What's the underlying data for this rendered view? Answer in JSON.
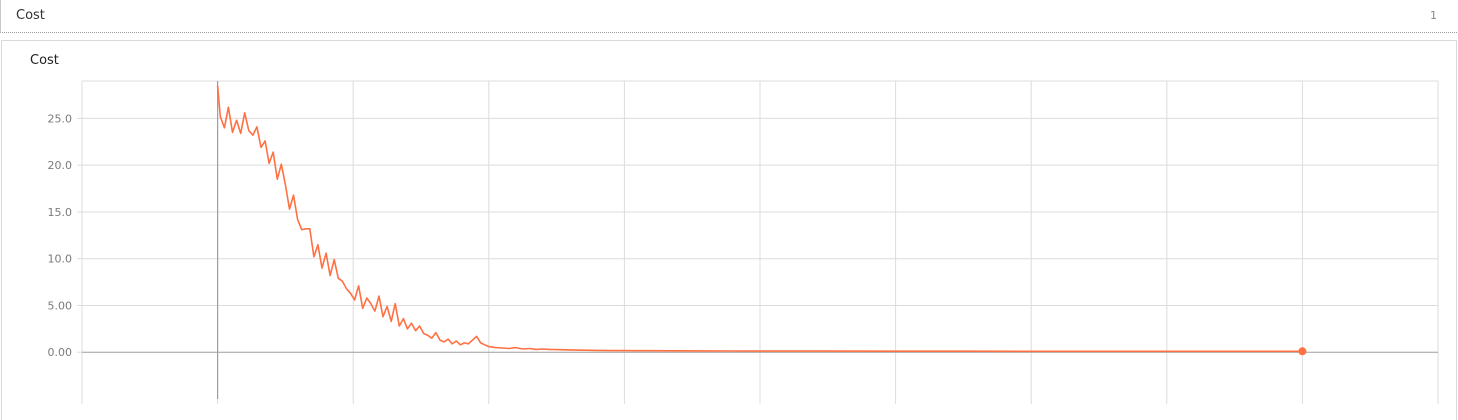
{
  "section": {
    "title": "Cost",
    "count": "1"
  },
  "card": {
    "title": "Cost"
  },
  "colors": {
    "series": "#ff7043",
    "grid": "#dcdcdc",
    "axis": "#9e9e9e"
  },
  "chart_data": {
    "type": "line",
    "title": "Cost",
    "xlabel": "",
    "ylabel": "",
    "ylim": [
      -5,
      29
    ],
    "xlim": [
      -1000,
      9000
    ],
    "x_ticks_shown": false,
    "y_ticks": [
      {
        "value": 25,
        "label": "25.0"
      },
      {
        "value": 20,
        "label": "20.0"
      },
      {
        "value": 15,
        "label": "15.0"
      },
      {
        "value": 10,
        "label": "10.0"
      },
      {
        "value": 5,
        "label": "5.00"
      },
      {
        "value": 0,
        "label": "0.00"
      }
    ],
    "grid": true,
    "legend": "none",
    "series": [
      {
        "x": [
          0,
          20,
          50,
          80,
          110,
          140,
          170,
          200,
          230,
          260,
          290,
          320,
          350,
          380,
          410,
          440,
          470,
          500,
          530,
          560,
          590,
          620,
          650,
          680,
          710,
          740,
          770,
          800,
          830,
          860,
          890,
          920,
          950,
          980,
          1010,
          1040,
          1070,
          1100,
          1130,
          1160,
          1190,
          1220,
          1250,
          1280,
          1310,
          1340,
          1370,
          1400,
          1430,
          1460,
          1490,
          1520,
          1550,
          1580,
          1610,
          1640,
          1670,
          1700,
          1730,
          1760,
          1790,
          1820,
          1850,
          1880,
          1910,
          1940,
          1970,
          2000,
          2050,
          2100,
          2150,
          2200,
          2250,
          2300,
          2350,
          2400,
          2450,
          2500,
          2600,
          2700,
          2800,
          2900,
          3000,
          3200,
          3400,
          3600,
          3800,
          4000,
          4500,
          5000,
          5500,
          6000,
          6500,
          7000,
          7500,
          8000
        ],
        "y": [
          28.5,
          25.2,
          24.0,
          26.2,
          23.5,
          24.8,
          23.4,
          25.6,
          23.7,
          23.2,
          24.1,
          21.9,
          22.6,
          20.2,
          21.4,
          18.5,
          20.1,
          17.9,
          15.3,
          16.8,
          14.2,
          13.1,
          13.2,
          13.2,
          10.2,
          11.5,
          9.0,
          10.6,
          8.2,
          9.9,
          7.9,
          7.6,
          6.8,
          6.3,
          5.6,
          7.1,
          4.7,
          5.8,
          5.2,
          4.4,
          6.0,
          3.8,
          4.9,
          3.3,
          5.2,
          2.8,
          3.6,
          2.5,
          3.1,
          2.3,
          2.8,
          2.0,
          1.8,
          1.5,
          2.1,
          1.3,
          1.1,
          1.4,
          0.9,
          1.2,
          0.8,
          1.0,
          0.9,
          1.3,
          1.7,
          1.0,
          0.8,
          0.6,
          0.5,
          0.45,
          0.4,
          0.5,
          0.35,
          0.4,
          0.3,
          0.35,
          0.3,
          0.28,
          0.25,
          0.22,
          0.2,
          0.18,
          0.17,
          0.16,
          0.15,
          0.14,
          0.13,
          0.12,
          0.12,
          0.11,
          0.11,
          0.1,
          0.1,
          0.1,
          0.1,
          0.1
        ]
      }
    ]
  }
}
